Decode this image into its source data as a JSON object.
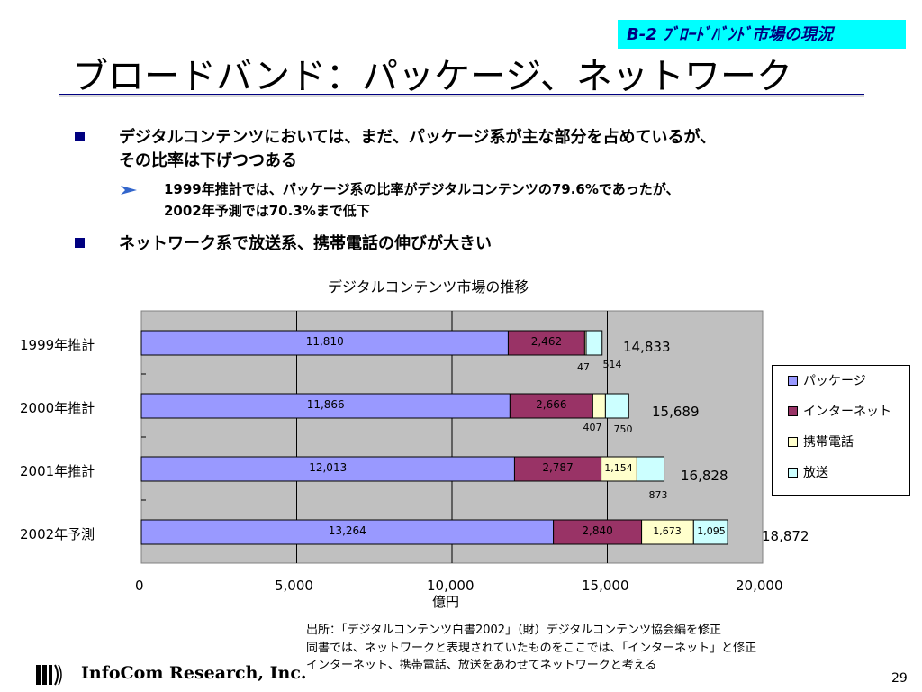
{
  "header": {
    "section_tag": "B-2 ﾌﾞﾛｰﾄﾞﾊﾞﾝﾄﾞ市場の現況"
  },
  "title": "ブロードバンド：パッケージ、ネットワーク",
  "bullets": [
    {
      "text": "デジタルコンテンツにおいては、まだ、パッケージ系が主な部分を占めているが、",
      "text2": "その比率は下げつつある"
    },
    {
      "text": "ネットワーク系で放送系、携帯電話の伸びが大きい"
    }
  ],
  "sub_bullet": {
    "line1": "1999年推計では、パッケージ系の比率がデジタルコンテンツの79.6%であったが、",
    "line2": "2002年予測では70.3%まで低下"
  },
  "chart_data": {
    "type": "bar",
    "orientation": "horizontal",
    "stacked": true,
    "title": "デジタルコンテンツ市場の推移",
    "xlabel": "億円",
    "categories": [
      "1999年推計",
      "2000年推計",
      "2001年推計",
      "2002年予測"
    ],
    "series": [
      {
        "name": "パッケージ",
        "values": [
          11810,
          11866,
          12013,
          13264
        ],
        "labels": [
          "11,810",
          "11,866",
          "12,013",
          "13,264"
        ],
        "color": "#9999ff"
      },
      {
        "name": "インターネット",
        "values": [
          2462,
          2666,
          2787,
          2840
        ],
        "labels": [
          "2,462",
          "2,666",
          "2,787",
          "2,840"
        ],
        "color": "#993366"
      },
      {
        "name": "携帯電話",
        "values": [
          47,
          407,
          1154,
          1673
        ],
        "labels": [
          "47",
          "407",
          "1,154",
          "1,673"
        ],
        "color": "#ffffcc"
      },
      {
        "name": "放送",
        "values": [
          514,
          750,
          873,
          1095
        ],
        "labels": [
          "514",
          "750",
          "873",
          "1,095"
        ],
        "color": "#ccffff"
      }
    ],
    "totals": [
      "14,833",
      "15,689",
      "16,828",
      "18,872"
    ],
    "xlim": [
      0,
      20000
    ],
    "xticks": [
      "0",
      "5,000",
      "10,000",
      "15,000",
      "20,000"
    ],
    "grid": true,
    "plot_background": "#c0c0c0",
    "legend_position": "right"
  },
  "notes": [
    "出所：「デジタルコンテンツ白書2002」（財）デジタルコンテンツ協会編を修正",
    "同書では、ネットワークと表現されていたものをここでは、「インターネット」と修正",
    "インターネット、携帯電話、放送をあわせてネットワークと考える"
  ],
  "footer": {
    "company": "InfoCom Research, Inc.",
    "page": "29"
  },
  "colors": {
    "accent": "#000080",
    "tag_bg": "#00ffff"
  }
}
